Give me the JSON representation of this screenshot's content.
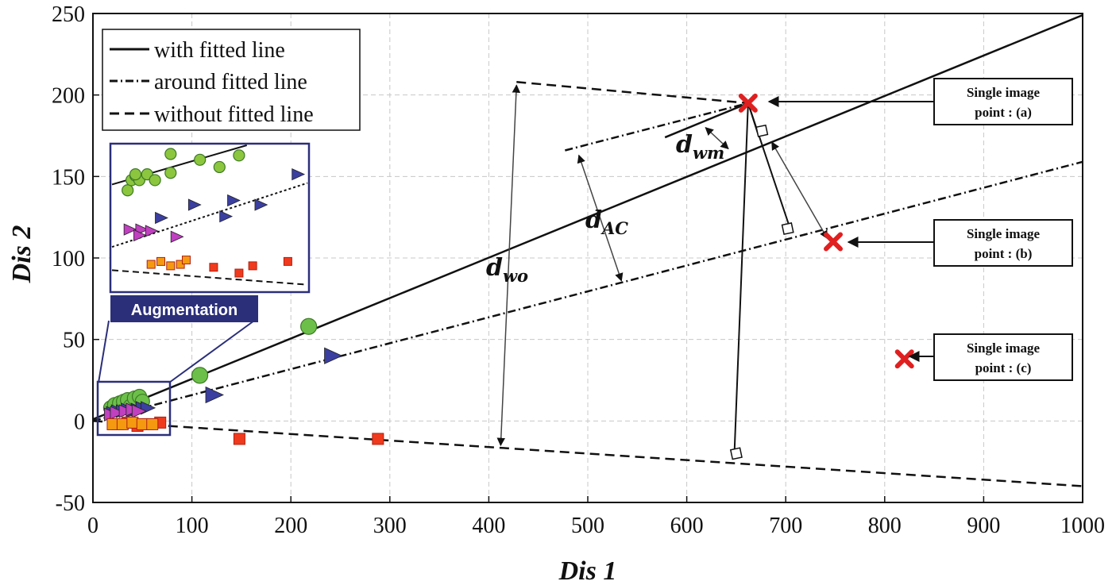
{
  "chart_data": {
    "type": "scatter",
    "xlabel": "Dis 1",
    "ylabel": "Dis 2",
    "xlim": [
      0,
      1000
    ],
    "ylim": [
      -50,
      250
    ],
    "xticks": [
      0,
      100,
      200,
      300,
      400,
      500,
      600,
      700,
      800,
      900,
      1000
    ],
    "yticks": [
      -50,
      0,
      50,
      100,
      150,
      200,
      250
    ],
    "grid": true,
    "legend_position": "top-left",
    "legend": [
      {
        "label": "with fitted line",
        "style": "solid"
      },
      {
        "label": "around fitted line",
        "style": "dashdot"
      },
      {
        "label": "without fitted line",
        "style": "dashed"
      }
    ],
    "lines": [
      {
        "name": "with fitted line",
        "style": "solid",
        "x": [
          0,
          1000
        ],
        "y": [
          1,
          249
        ]
      },
      {
        "name": "around fitted line",
        "style": "dashdot",
        "x": [
          0,
          1000
        ],
        "y": [
          0,
          159
        ]
      },
      {
        "name": "without fitted line",
        "style": "dashed",
        "x": [
          0,
          1000
        ],
        "y": [
          0,
          -40
        ]
      }
    ],
    "series": [
      {
        "name": "with fitted line samples",
        "marker": "circle",
        "color": "#6cc04a",
        "points": [
          [
            18,
            8
          ],
          [
            22,
            10
          ],
          [
            27,
            11
          ],
          [
            31,
            12
          ],
          [
            35,
            13
          ],
          [
            38,
            9
          ],
          [
            42,
            14
          ],
          [
            47,
            15
          ],
          [
            50,
            12
          ],
          [
            108,
            28
          ],
          [
            218,
            58
          ]
        ]
      },
      {
        "name": "around fitted line samples",
        "marker": "triangle",
        "color": "#3b3fa0",
        "points": [
          [
            20,
            5
          ],
          [
            25,
            6
          ],
          [
            30,
            6
          ],
          [
            35,
            7
          ],
          [
            40,
            6
          ],
          [
            45,
            7
          ],
          [
            50,
            8
          ],
          [
            55,
            8
          ],
          [
            122,
            16
          ],
          [
            242,
            40
          ]
        ]
      },
      {
        "name": "around fitted line samples (augmented)",
        "marker": "triangle",
        "color": "#c040c0",
        "points": [
          [
            18,
            4
          ],
          [
            24,
            5
          ],
          [
            33,
            6
          ],
          [
            40,
            7
          ],
          [
            46,
            6
          ]
        ]
      },
      {
        "name": "without fitted line samples",
        "marker": "square",
        "color": "#f03a1e",
        "points": [
          [
            25,
            -2
          ],
          [
            35,
            -1
          ],
          [
            45,
            -3
          ],
          [
            55,
            -2
          ],
          [
            68,
            -1
          ],
          [
            148,
            -11
          ],
          [
            288,
            -11
          ]
        ]
      },
      {
        "name": "without fitted line samples (augmented)",
        "marker": "square",
        "color": "#f59a10",
        "points": [
          [
            20,
            -2
          ],
          [
            30,
            -2
          ],
          [
            40,
            -1
          ],
          [
            50,
            -2
          ],
          [
            60,
            -2
          ]
        ]
      },
      {
        "name": "single image points",
        "marker": "x",
        "color": "#e02020",
        "points": [
          [
            662,
            195
          ],
          [
            748,
            110
          ],
          [
            820,
            38
          ]
        ]
      }
    ],
    "annotations": [
      {
        "label_main": "d",
        "label_sub": "wo",
        "text": "d_wo"
      },
      {
        "label_main": "d",
        "label_sub": "AC",
        "text": "d_AC"
      },
      {
        "label_main": "d",
        "label_sub": "wm",
        "text": "d_wm"
      }
    ],
    "callouts": [
      {
        "line1": "Single image",
        "line2": "point : (a)"
      },
      {
        "line1": "Single image",
        "line2": "point : (b)"
      },
      {
        "line1": "Single image",
        "line2": "point : (c)"
      }
    ],
    "inset": {
      "label": "Augmentation",
      "circles": [
        [
          0.08,
          0.69
        ],
        [
          0.1,
          0.76
        ],
        [
          0.12,
          0.79
        ],
        [
          0.14,
          0.76
        ],
        [
          0.18,
          0.8
        ],
        [
          0.22,
          0.76
        ],
        [
          0.3,
          0.94
        ],
        [
          0.45,
          0.9
        ],
        [
          0.65,
          0.93
        ],
        [
          0.55,
          0.85
        ],
        [
          0.12,
          0.8
        ],
        [
          0.3,
          0.81
        ]
      ],
      "triangles_blue": [
        [
          0.42,
          0.59
        ],
        [
          0.62,
          0.62
        ],
        [
          0.58,
          0.51
        ],
        [
          0.25,
          0.5
        ],
        [
          0.76,
          0.59
        ],
        [
          0.95,
          0.8
        ]
      ],
      "triangles_purple": [
        [
          0.09,
          0.42
        ],
        [
          0.15,
          0.42
        ],
        [
          0.2,
          0.41
        ],
        [
          0.33,
          0.37
        ],
        [
          0.14,
          0.38
        ]
      ],
      "squares_orange": [
        [
          0.2,
          0.18
        ],
        [
          0.25,
          0.2
        ],
        [
          0.3,
          0.17
        ],
        [
          0.35,
          0.18
        ],
        [
          0.38,
          0.21
        ]
      ],
      "squares_red": [
        [
          0.52,
          0.16
        ],
        [
          0.65,
          0.12
        ],
        [
          0.72,
          0.17
        ],
        [
          0.9,
          0.2
        ]
      ]
    }
  }
}
